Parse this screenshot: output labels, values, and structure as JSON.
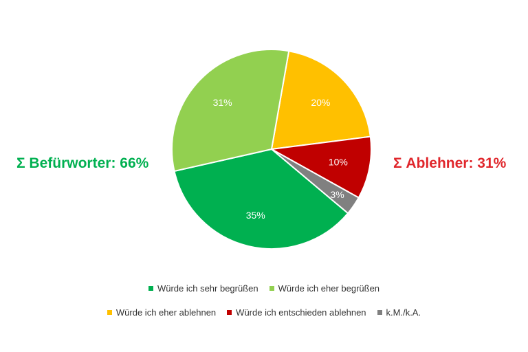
{
  "chart_data": {
    "type": "pie",
    "slices": [
      {
        "label": "Würde ich sehr begrüßen",
        "value": 35,
        "display": "35%",
        "color": "#00b050"
      },
      {
        "label": "Würde ich eher begrüßen",
        "value": 31,
        "display": "31%",
        "color": "#92d050"
      },
      {
        "label": "Würde ich eher ablehnen",
        "value": 20,
        "display": "20%",
        "color": "#ffc000"
      },
      {
        "label": "Würde ich entschieden ablehnen",
        "value": 10,
        "display": "10%",
        "color": "#c00000"
      },
      {
        "label": "k.M./k.A.",
        "value": 3,
        "display": "3%",
        "color": "#808080"
      }
    ],
    "annotations": {
      "supporters": {
        "text": "Σ Befürworter: 66%",
        "color": "#00b050"
      },
      "opponents": {
        "text": "Σ Ablehner: 31%",
        "color": "#e0262b"
      }
    },
    "legend_position": "bottom"
  }
}
